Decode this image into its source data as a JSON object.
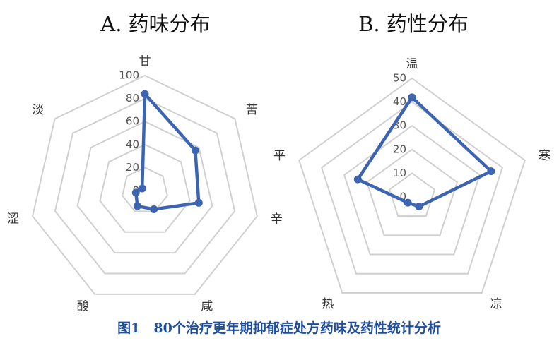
{
  "chart_data": [
    {
      "type": "radar",
      "title": "A. 药味分布",
      "categories": [
        "甘",
        "苦",
        "辛",
        "咸",
        "酸",
        "涩",
        "淡"
      ],
      "values": [
        84,
        56,
        48,
        18,
        15,
        8,
        3
      ],
      "color": "#3d64b0",
      "ylim": [
        0,
        100
      ],
      "yticks": [
        0,
        20,
        40,
        60,
        80,
        100
      ],
      "grid": true
    },
    {
      "type": "radar",
      "title": "B. 药性分布",
      "categories": [
        "温",
        "寒",
        "凉",
        "热",
        "平"
      ],
      "values": [
        42,
        35,
        5,
        3,
        24
      ],
      "color": "#3d64b0",
      "ylim": [
        0,
        50
      ],
      "yticks": [
        0,
        10,
        20,
        30,
        40,
        50
      ],
      "grid": true
    }
  ],
  "caption": "图1　80个治疗更年期抑郁症处方药味及药性统计分析"
}
